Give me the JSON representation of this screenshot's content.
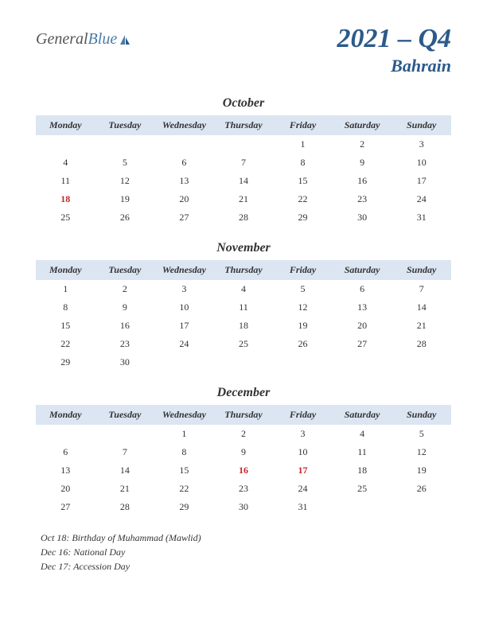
{
  "logo": {
    "text1": "General",
    "text2": "Blue"
  },
  "title": {
    "year_q": "2021 – Q4",
    "country": "Bahrain"
  },
  "daysOfWeek": [
    "Monday",
    "Tuesday",
    "Wednesday",
    "Thursday",
    "Friday",
    "Saturday",
    "Sunday"
  ],
  "colors": {
    "headerBg": "#dce6f2",
    "titleColor": "#2c5a8a",
    "holidayColor": "#c52828",
    "textColor": "#333333",
    "logoGray": "#555555",
    "logoBlue": "#4a7ba8"
  },
  "months": [
    {
      "name": "October",
      "weeks": [
        [
          "",
          "",
          "",
          "",
          "1",
          "2",
          "3"
        ],
        [
          "4",
          "5",
          "6",
          "7",
          "8",
          "9",
          "10"
        ],
        [
          "11",
          "12",
          "13",
          "14",
          "15",
          "16",
          "17"
        ],
        [
          "18",
          "19",
          "20",
          "21",
          "22",
          "23",
          "24"
        ],
        [
          "25",
          "26",
          "27",
          "28",
          "29",
          "30",
          "31"
        ]
      ],
      "holidays": [
        "18"
      ]
    },
    {
      "name": "November",
      "weeks": [
        [
          "1",
          "2",
          "3",
          "4",
          "5",
          "6",
          "7"
        ],
        [
          "8",
          "9",
          "10",
          "11",
          "12",
          "13",
          "14"
        ],
        [
          "15",
          "16",
          "17",
          "18",
          "19",
          "20",
          "21"
        ],
        [
          "22",
          "23",
          "24",
          "25",
          "26",
          "27",
          "28"
        ],
        [
          "29",
          "30",
          "",
          "",
          "",
          "",
          ""
        ]
      ],
      "holidays": []
    },
    {
      "name": "December",
      "weeks": [
        [
          "",
          "",
          "1",
          "2",
          "3",
          "4",
          "5"
        ],
        [
          "6",
          "7",
          "8",
          "9",
          "10",
          "11",
          "12"
        ],
        [
          "13",
          "14",
          "15",
          "16",
          "17",
          "18",
          "19"
        ],
        [
          "20",
          "21",
          "22",
          "23",
          "24",
          "25",
          "26"
        ],
        [
          "27",
          "28",
          "29",
          "30",
          "31",
          "",
          ""
        ]
      ],
      "holidays": [
        "16",
        "17"
      ]
    }
  ],
  "holidayList": [
    "Oct 18: Birthday of Muhammad (Mawlid)",
    "Dec 16: National Day",
    "Dec 17: Accession Day"
  ]
}
